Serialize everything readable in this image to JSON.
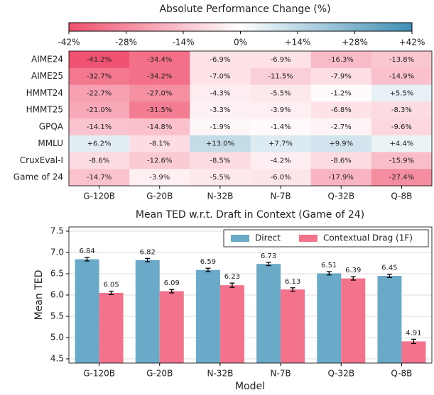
{
  "chart_data": [
    {
      "type": "heatmap",
      "title": "Absolute Performance Change (%)",
      "columns": [
        "G-120B",
        "G-20B",
        "N-32B",
        "N-7B",
        "Q-32B",
        "Q-8B"
      ],
      "rows": [
        "AIME24",
        "AIME25",
        "HMMT24",
        "HMMT25",
        "GPQA",
        "MMLU",
        "CruxEval-I",
        "Game of 24"
      ],
      "values": [
        [
          -41.2,
          -34.4,
          -6.9,
          -6.9,
          -16.3,
          -13.8
        ],
        [
          -32.7,
          -34.2,
          -7.0,
          -11.5,
          -7.9,
          -14.9
        ],
        [
          -22.7,
          -27.0,
          -4.3,
          -5.5,
          -1.2,
          5.5
        ],
        [
          -21.0,
          -31.5,
          -3.3,
          -3.9,
          -6.8,
          -8.3
        ],
        [
          -14.1,
          -14.8,
          -1.9,
          -1.4,
          -2.7,
          -9.6
        ],
        [
          6.2,
          -8.1,
          13.0,
          7.7,
          9.9,
          4.4
        ],
        [
          -8.6,
          -12.6,
          -8.5,
          -4.2,
          -8.6,
          -15.9
        ],
        [
          -14.7,
          -3.9,
          -5.5,
          -6.0,
          -17.9,
          -27.4
        ]
      ],
      "value_labels": [
        [
          "-41.2%",
          "-34.4%",
          "-6.9%",
          "-6.9%",
          "-16.3%",
          "-13.8%"
        ],
        [
          "-32.7%",
          "-34.2%",
          "-7.0%",
          "-11.5%",
          "-7.9%",
          "-14.9%"
        ],
        [
          "-22.7%",
          "-27.0%",
          "-4.3%",
          "-5.5%",
          "-1.2%",
          "+5.5%"
        ],
        [
          "-21.0%",
          "-31.5%",
          "-3.3%",
          "-3.9%",
          "-6.8%",
          "-8.3%"
        ],
        [
          "-14.1%",
          "-14.8%",
          "-1.9%",
          "-1.4%",
          "-2.7%",
          "-9.6%"
        ],
        [
          "+6.2%",
          "-8.1%",
          "+13.0%",
          "+7.7%",
          "+9.9%",
          "+4.4%"
        ],
        [
          "-8.6%",
          "-12.6%",
          "-8.5%",
          "-4.2%",
          "-8.6%",
          "-15.9%"
        ],
        [
          "-14.7%",
          "-3.9%",
          "-5.5%",
          "-6.0%",
          "-17.9%",
          "-27.4%"
        ]
      ],
      "zlim": [
        -42,
        42
      ],
      "cmap": [
        "#f0506e",
        "#ffffff",
        "#3f8fb5"
      ],
      "zticks": [
        {
          "value": -42,
          "label": "-42%"
        },
        {
          "value": -28,
          "label": "-28%"
        },
        {
          "value": -14,
          "label": "-14%"
        },
        {
          "value": 0,
          "label": "0%"
        },
        {
          "value": 14,
          "label": "+14%"
        },
        {
          "value": 28,
          "label": "+28%"
        },
        {
          "value": 42,
          "label": "+42%"
        }
      ]
    },
    {
      "type": "bar",
      "title": "Mean TED w.r.t. Draft in Context (Game of 24)",
      "xlabel": "Model",
      "ylabel": "Mean TED",
      "categories": [
        "G-120B",
        "G-20B",
        "N-32B",
        "N-7B",
        "Q-32B",
        "Q-8B"
      ],
      "series": [
        {
          "name": "Direct",
          "color": "#6aa9c7",
          "values": [
            6.84,
            6.82,
            6.59,
            6.73,
            6.51,
            6.45
          ],
          "errors": [
            0.04,
            0.04,
            0.04,
            0.04,
            0.04,
            0.04
          ]
        },
        {
          "name": "Contextual Drag (1F)",
          "color": "#f3738d",
          "values": [
            6.05,
            6.09,
            6.23,
            6.13,
            6.39,
            4.91
          ],
          "errors": [
            0.04,
            0.04,
            0.05,
            0.04,
            0.04,
            0.05
          ]
        }
      ],
      "ylim": [
        4.4,
        7.6
      ],
      "yticks": [
        4.5,
        {
          "value": 5.0,
          "label": "5.0"
        },
        5.5,
        {
          "value": 6.0,
          "label": "6.0"
        },
        6.5,
        {
          "value": 7.0,
          "label": "7.0"
        },
        7.5
      ],
      "grid": true,
      "legend": "upper right"
    }
  ]
}
